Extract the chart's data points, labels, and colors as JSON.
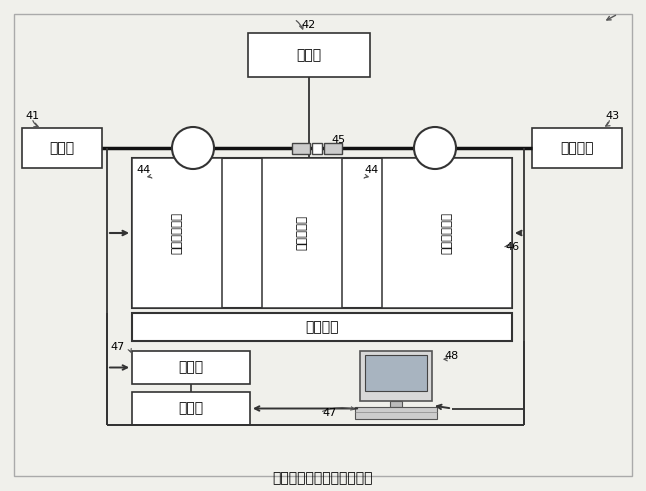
{
  "bg_color": "#f0f0eb",
  "border_color": "#888888",
  "title": "指标并行优化自动调芯装置",
  "labels": {
    "n41": "41",
    "n42": "42",
    "n43": "43",
    "n44a": "44",
    "n44b": "44",
    "n45": "45",
    "n46": "46",
    "n47a": "47",
    "n47b": "47",
    "n48": "48",
    "laser": "激光源",
    "monitor": "监视器",
    "power": "光功率计",
    "sixdim_l": "六维调节装置",
    "waveguide": "光波导支架",
    "sixdim_r": "六维调节装置",
    "antivib": "抗震平台",
    "driver1": "驱动器",
    "driver2": "驱动器"
  },
  "figsize": [
    6.46,
    4.91
  ],
  "dpi": 100
}
